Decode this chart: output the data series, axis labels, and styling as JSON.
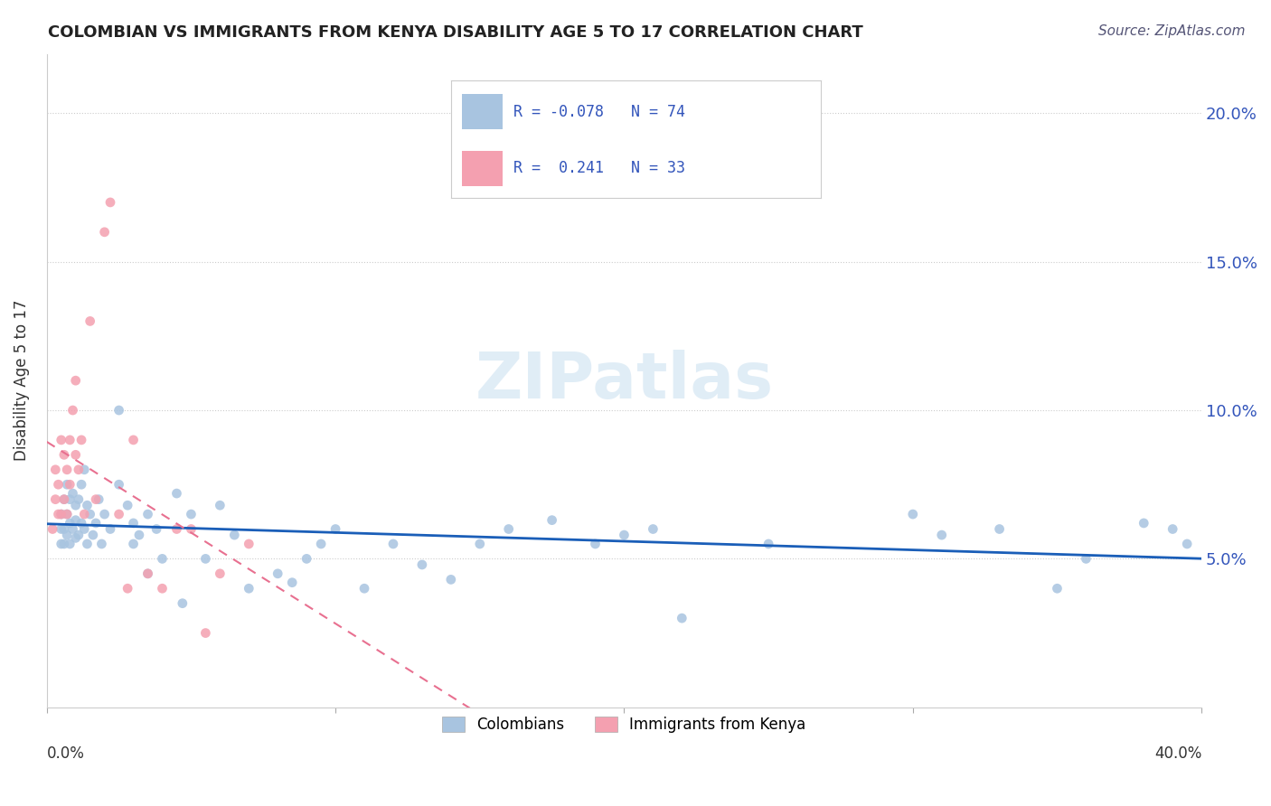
{
  "title": "COLOMBIAN VS IMMIGRANTS FROM KENYA DISABILITY AGE 5 TO 17 CORRELATION CHART",
  "source": "Source: ZipAtlas.com",
  "ylabel": "Disability Age 5 to 17",
  "y_tick_values": [
    0.05,
    0.1,
    0.15,
    0.2
  ],
  "x_range": [
    0.0,
    0.4
  ],
  "y_range": [
    0.0,
    0.22
  ],
  "legend_items": [
    "Colombians",
    "Immigrants from Kenya"
  ],
  "R_colombian": -0.078,
  "N_colombian": 74,
  "R_kenya": 0.241,
  "N_kenya": 33,
  "colombian_color": "#a8c4e0",
  "kenya_color": "#f4a0b0",
  "colombian_line_color": "#1a5eb8",
  "kenya_line_color": "#e87090",
  "colombian_points_x": [
    0.005,
    0.005,
    0.005,
    0.006,
    0.006,
    0.006,
    0.007,
    0.007,
    0.007,
    0.008,
    0.008,
    0.008,
    0.009,
    0.009,
    0.01,
    0.01,
    0.01,
    0.011,
    0.011,
    0.012,
    0.012,
    0.013,
    0.013,
    0.014,
    0.014,
    0.015,
    0.016,
    0.017,
    0.018,
    0.019,
    0.02,
    0.022,
    0.025,
    0.025,
    0.028,
    0.03,
    0.03,
    0.032,
    0.035,
    0.035,
    0.038,
    0.04,
    0.045,
    0.047,
    0.05,
    0.055,
    0.06,
    0.065,
    0.07,
    0.08,
    0.085,
    0.09,
    0.095,
    0.1,
    0.11,
    0.12,
    0.13,
    0.14,
    0.15,
    0.16,
    0.175,
    0.19,
    0.2,
    0.21,
    0.22,
    0.25,
    0.3,
    0.31,
    0.33,
    0.35,
    0.36,
    0.38,
    0.39,
    0.395
  ],
  "colombian_points_y": [
    0.065,
    0.06,
    0.055,
    0.07,
    0.06,
    0.055,
    0.075,
    0.065,
    0.058,
    0.07,
    0.062,
    0.055,
    0.072,
    0.06,
    0.068,
    0.063,
    0.057,
    0.07,
    0.058,
    0.075,
    0.062,
    0.08,
    0.06,
    0.068,
    0.055,
    0.065,
    0.058,
    0.062,
    0.07,
    0.055,
    0.065,
    0.06,
    0.1,
    0.075,
    0.068,
    0.062,
    0.055,
    0.058,
    0.065,
    0.045,
    0.06,
    0.05,
    0.072,
    0.035,
    0.065,
    0.05,
    0.068,
    0.058,
    0.04,
    0.045,
    0.042,
    0.05,
    0.055,
    0.06,
    0.04,
    0.055,
    0.048,
    0.043,
    0.055,
    0.06,
    0.063,
    0.055,
    0.058,
    0.06,
    0.03,
    0.055,
    0.065,
    0.058,
    0.06,
    0.04,
    0.05,
    0.062,
    0.06,
    0.055
  ],
  "kenya_points_x": [
    0.002,
    0.003,
    0.003,
    0.004,
    0.004,
    0.005,
    0.005,
    0.006,
    0.006,
    0.007,
    0.007,
    0.008,
    0.008,
    0.009,
    0.01,
    0.01,
    0.011,
    0.012,
    0.013,
    0.015,
    0.017,
    0.02,
    0.022,
    0.025,
    0.028,
    0.03,
    0.035,
    0.04,
    0.045,
    0.05,
    0.055,
    0.06,
    0.07
  ],
  "kenya_points_y": [
    0.06,
    0.07,
    0.08,
    0.065,
    0.075,
    0.09,
    0.065,
    0.085,
    0.07,
    0.08,
    0.065,
    0.09,
    0.075,
    0.1,
    0.11,
    0.085,
    0.08,
    0.09,
    0.065,
    0.13,
    0.07,
    0.16,
    0.17,
    0.065,
    0.04,
    0.09,
    0.045,
    0.04,
    0.06,
    0.06,
    0.025,
    0.045,
    0.055
  ]
}
